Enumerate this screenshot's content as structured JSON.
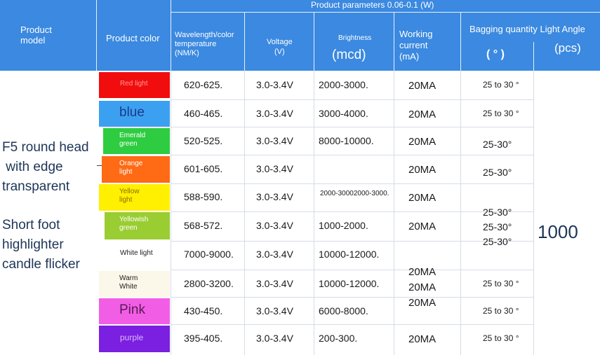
{
  "header": {
    "product_model": "Product\nmodel",
    "product_color": "Product color",
    "product_parameters": "Product parameters 0.06-0.1 (W)",
    "wavelength": "Wavelength/color\ntemperature\n(NM/K)",
    "voltage": "Voltage\n(V)",
    "brightness": "Brightness",
    "brightness_unit": "(mcd)",
    "current": "Working\ncurrent\n(mA)",
    "bagging_angle": "Bagging quantity Light Angle",
    "angle_symbol": "( ° )",
    "pcs": "(pcs)"
  },
  "side_labels": {
    "f5": "F5 round head\n with edge\ntransparent",
    "short_foot": "Short foot\nhighlighter\ncandle flicker"
  },
  "quantity": "1000",
  "rows": [
    {
      "color": "Red light",
      "swatch": "#f10d0d",
      "text_color": "#ff9a9a",
      "wavelength": "620-625.",
      "voltage": "3.0-3.4V",
      "brightness": "2000-3000.",
      "current": "20MA",
      "angle": "25 to 30 °"
    },
    {
      "color": "blue",
      "swatch": "#3ca0f0",
      "text_color": "#1e3a8a",
      "wavelength": "460-465.",
      "voltage": "3.0-3.4V",
      "brightness": "3000-4000.",
      "current": "20MA",
      "angle": "25 to 30 °"
    },
    {
      "color": "Emerald\ngreen",
      "swatch": "#2ecc40",
      "text_color": "#ffffff",
      "wavelength": "520-525.",
      "voltage": "3.0-3.4V",
      "brightness": "8000-10000.",
      "current": "20MA",
      "angle": "25-30°"
    },
    {
      "color": "Orange\nlight",
      "swatch": "#ff6a14",
      "text_color": "#ffffff",
      "wavelength": "601-605.",
      "voltage": "3.0-3.4V",
      "brightness": "",
      "current": "20MA",
      "angle": "25-30°"
    },
    {
      "color": "Yellow\nlight",
      "swatch": "#ffef00",
      "text_color": "#8a6d00",
      "wavelength": "588-590.",
      "voltage": "3.0-3.4V",
      "brightness": "2000-30002000-3000.",
      "current": "20MA",
      "angle": ""
    },
    {
      "color": "Yellowish\ngreen",
      "swatch": "#9acd32",
      "text_color": "#ffffff",
      "wavelength": "568-572.",
      "voltage": "3.0-3.4V",
      "brightness": "1000-2000.",
      "current": "20MA",
      "angle": "25-30°\n25-30°\n25-30°"
    },
    {
      "color": "White light",
      "swatch": "#ffffff",
      "text_color": "#222222",
      "wavelength": "7000-9000.",
      "voltage": "3.0-3.4V",
      "brightness": "10000-12000.",
      "current": "",
      "angle": ""
    },
    {
      "color": "Warm\nWhite",
      "swatch": "#fbf7e9",
      "text_color": "#222222",
      "wavelength": "2800-3200.",
      "voltage": "3.0-3.4V",
      "brightness": "10000-12000.",
      "current": "20MA\n20MA\n20MA",
      "angle": "25 to 30 °"
    },
    {
      "color": "Pink",
      "swatch": "#f25de6",
      "text_color": "#5a1a55",
      "wavelength": "430-450.",
      "voltage": "3.0-3.4V",
      "brightness": "6000-8000.",
      "current": "",
      "angle": "25 to 30 °"
    },
    {
      "color": "purple",
      "swatch": "#7b1fe0",
      "text_color": "#d9b8ff",
      "wavelength": "395-405.",
      "voltage": "3.0-3.4V",
      "brightness": "200-300.",
      "current": "20MA",
      "angle": "25 to 30 °"
    }
  ]
}
